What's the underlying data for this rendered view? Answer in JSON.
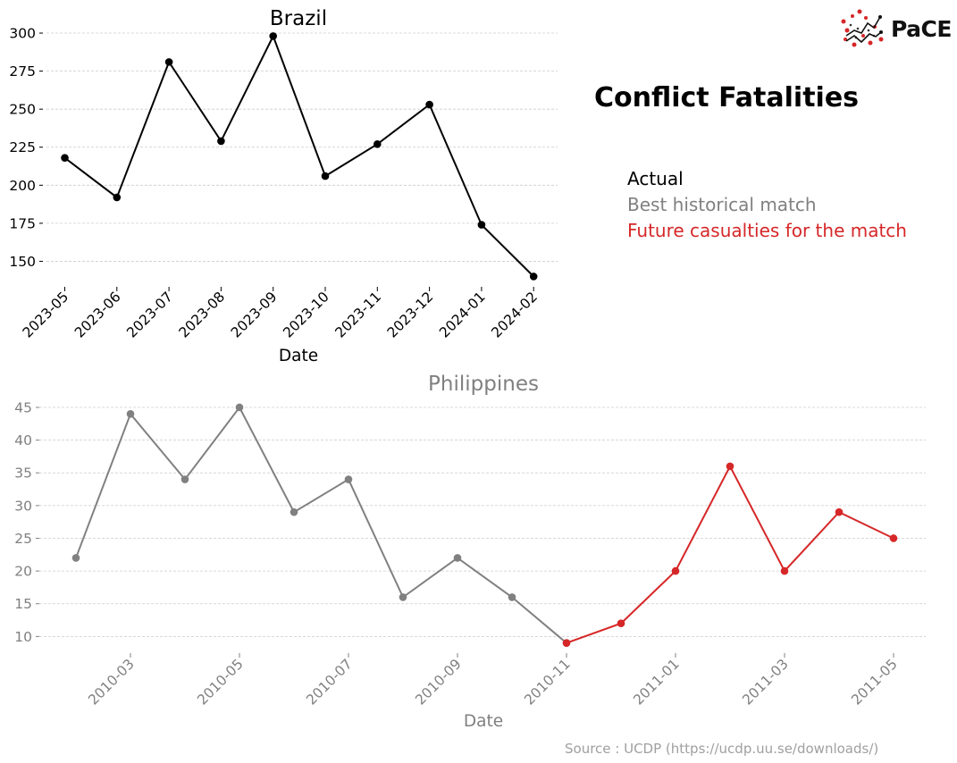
{
  "header": {
    "title": "Conflict Fatalities",
    "logo_text": "PaCE"
  },
  "legend": {
    "items": [
      {
        "label": "Actual",
        "color": "#000000"
      },
      {
        "label": "Best historical match",
        "color": "#808080"
      },
      {
        "label": "Future casualties for the match",
        "color": "#d62728"
      }
    ]
  },
  "source": "Source : UCDP (https://ucdp.uu.se/downloads/)",
  "chart_data": [
    {
      "type": "line",
      "title": "Brazil",
      "xlabel": "Date",
      "ylabel": "",
      "x": [
        "2023-05",
        "2023-06",
        "2023-07",
        "2023-08",
        "2023-09",
        "2023-10",
        "2023-11",
        "2023-12",
        "2024-01",
        "2024-02"
      ],
      "x_tick_labels": [
        "2023-05",
        "2023-06",
        "2023-07",
        "2023-08",
        "2023-09",
        "2023-10",
        "2023-11",
        "2023-12",
        "2024-01",
        "2024-02"
      ],
      "y_ticks": [
        150,
        175,
        200,
        225,
        250,
        275,
        300
      ],
      "ylim": [
        135,
        310
      ],
      "grid": true,
      "series": [
        {
          "values": [
            218,
            192,
            281,
            229,
            298,
            206,
            227,
            253,
            174,
            140
          ],
          "color": "#000000"
        }
      ]
    },
    {
      "type": "line",
      "title": "Philippines",
      "xlabel": "Date",
      "ylabel": "",
      "x_tick_labels": [
        "2010-03",
        "2010-05",
        "2010-07",
        "2010-09",
        "2010-11",
        "2011-01",
        "2011-03",
        "2011-05"
      ],
      "y_ticks": [
        10,
        15,
        20,
        25,
        30,
        35,
        40,
        45
      ],
      "ylim": [
        8,
        46.5
      ],
      "grid": true,
      "series": [
        {
          "x": [
            "2010-02",
            "2010-03",
            "2010-04",
            "2010-05",
            "2010-06",
            "2010-07",
            "2010-08",
            "2010-09",
            "2010-10",
            "2010-11"
          ],
          "values": [
            22,
            44,
            34,
            45,
            29,
            34,
            16,
            22,
            16,
            9
          ],
          "color": "#808080"
        },
        {
          "x": [
            "2010-11",
            "2010-12",
            "2011-01",
            "2011-02",
            "2011-03",
            "2011-04",
            "2011-05"
          ],
          "values": [
            9,
            12,
            20,
            36,
            20,
            29,
            25
          ],
          "color": "#d62728"
        }
      ]
    }
  ]
}
